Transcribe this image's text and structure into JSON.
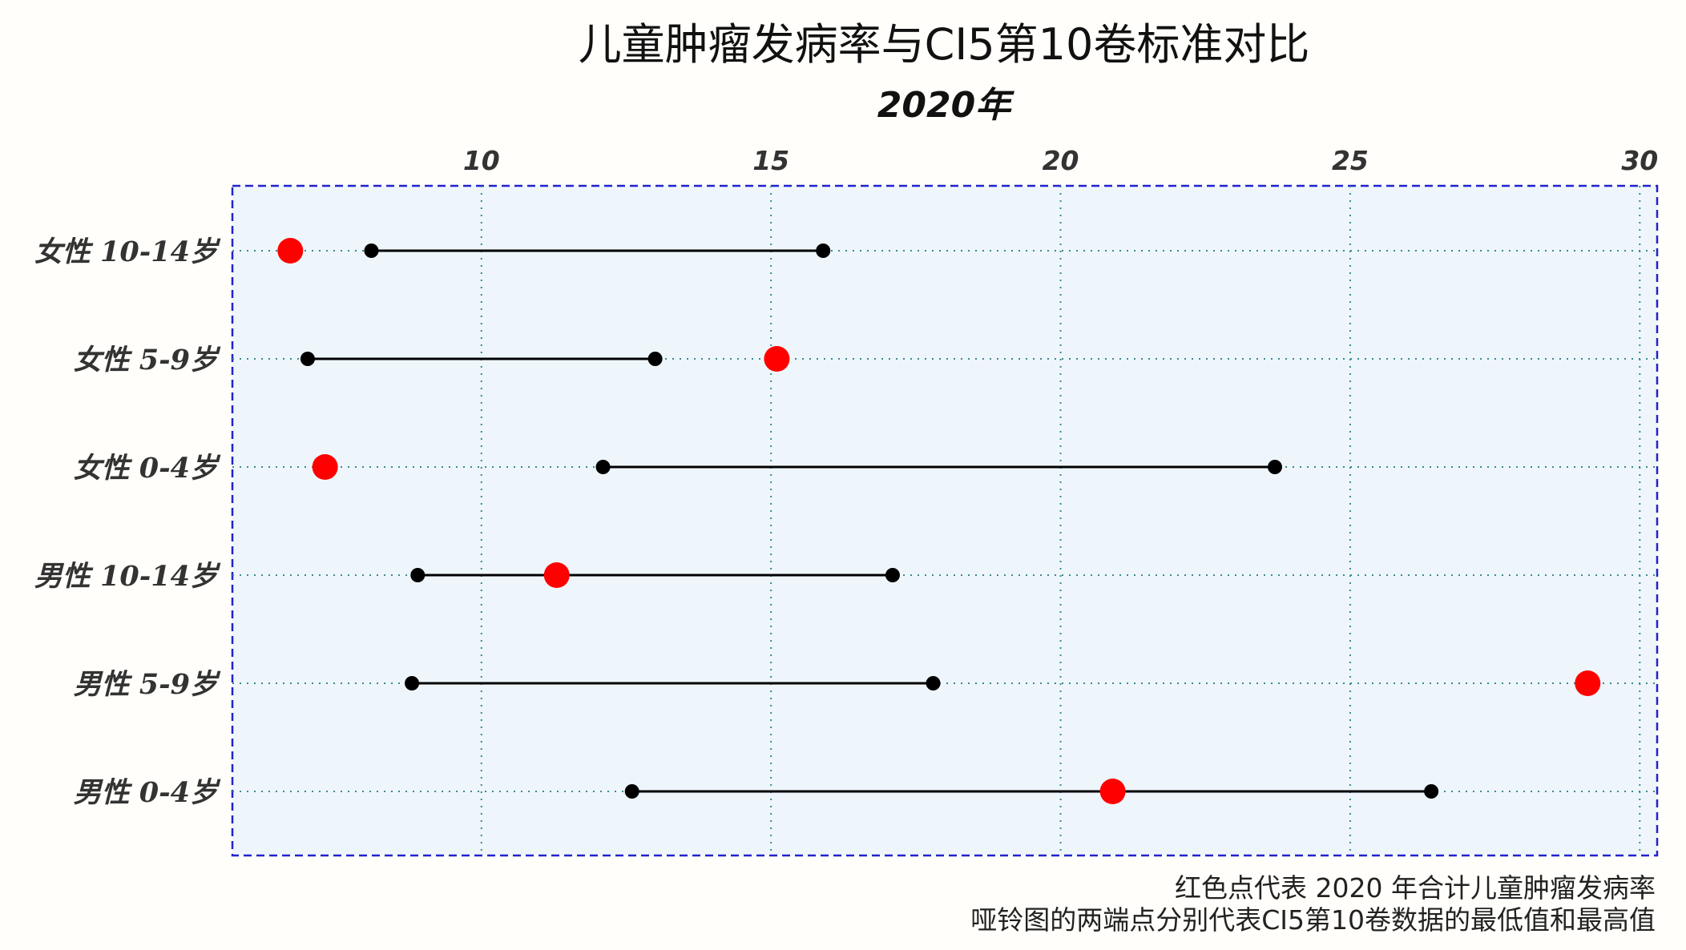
{
  "chart_data": {
    "type": "dumbbell",
    "title": "儿童肿瘤发病率与CI5第10卷标准对比",
    "subtitle": "2020年",
    "xlim": [
      5.7,
      30.3
    ],
    "xticks": [
      10,
      15,
      20,
      25,
      30
    ],
    "xtick_labels": [
      "10",
      "15",
      "20",
      "25",
      "30"
    ],
    "x_axis_position": "top",
    "grid": true,
    "categories": [
      "女性 10-14岁",
      "女性 5-9岁",
      "女性 0-4岁",
      "男性 10-14岁",
      "男性 5-9岁",
      "男性 0-4岁"
    ],
    "series": [
      {
        "role": "ci5_min",
        "color": "#000000",
        "values": [
          8.1,
          7.0,
          12.1,
          8.9,
          8.8,
          12.6
        ]
      },
      {
        "role": "ci5_max",
        "color": "#000000",
        "values": [
          15.9,
          13.0,
          23.7,
          17.1,
          17.8,
          26.4
        ]
      },
      {
        "role": "rate_2020",
        "color": "#ff0000",
        "values": [
          6.7,
          15.1,
          7.3,
          11.3,
          29.1,
          20.9
        ]
      }
    ],
    "annotations": [
      "红色点代表 2020 年合计儿童肿瘤发病率",
      "哑铃图的两端点分别代表CI5第10卷数据的最低值和最高值"
    ],
    "colors": {
      "panel_background": "#eef6fc",
      "panel_border": "#2222cc",
      "grid": "#3a8a8a",
      "highlight": "#ff0000",
      "range": "#000000"
    }
  }
}
